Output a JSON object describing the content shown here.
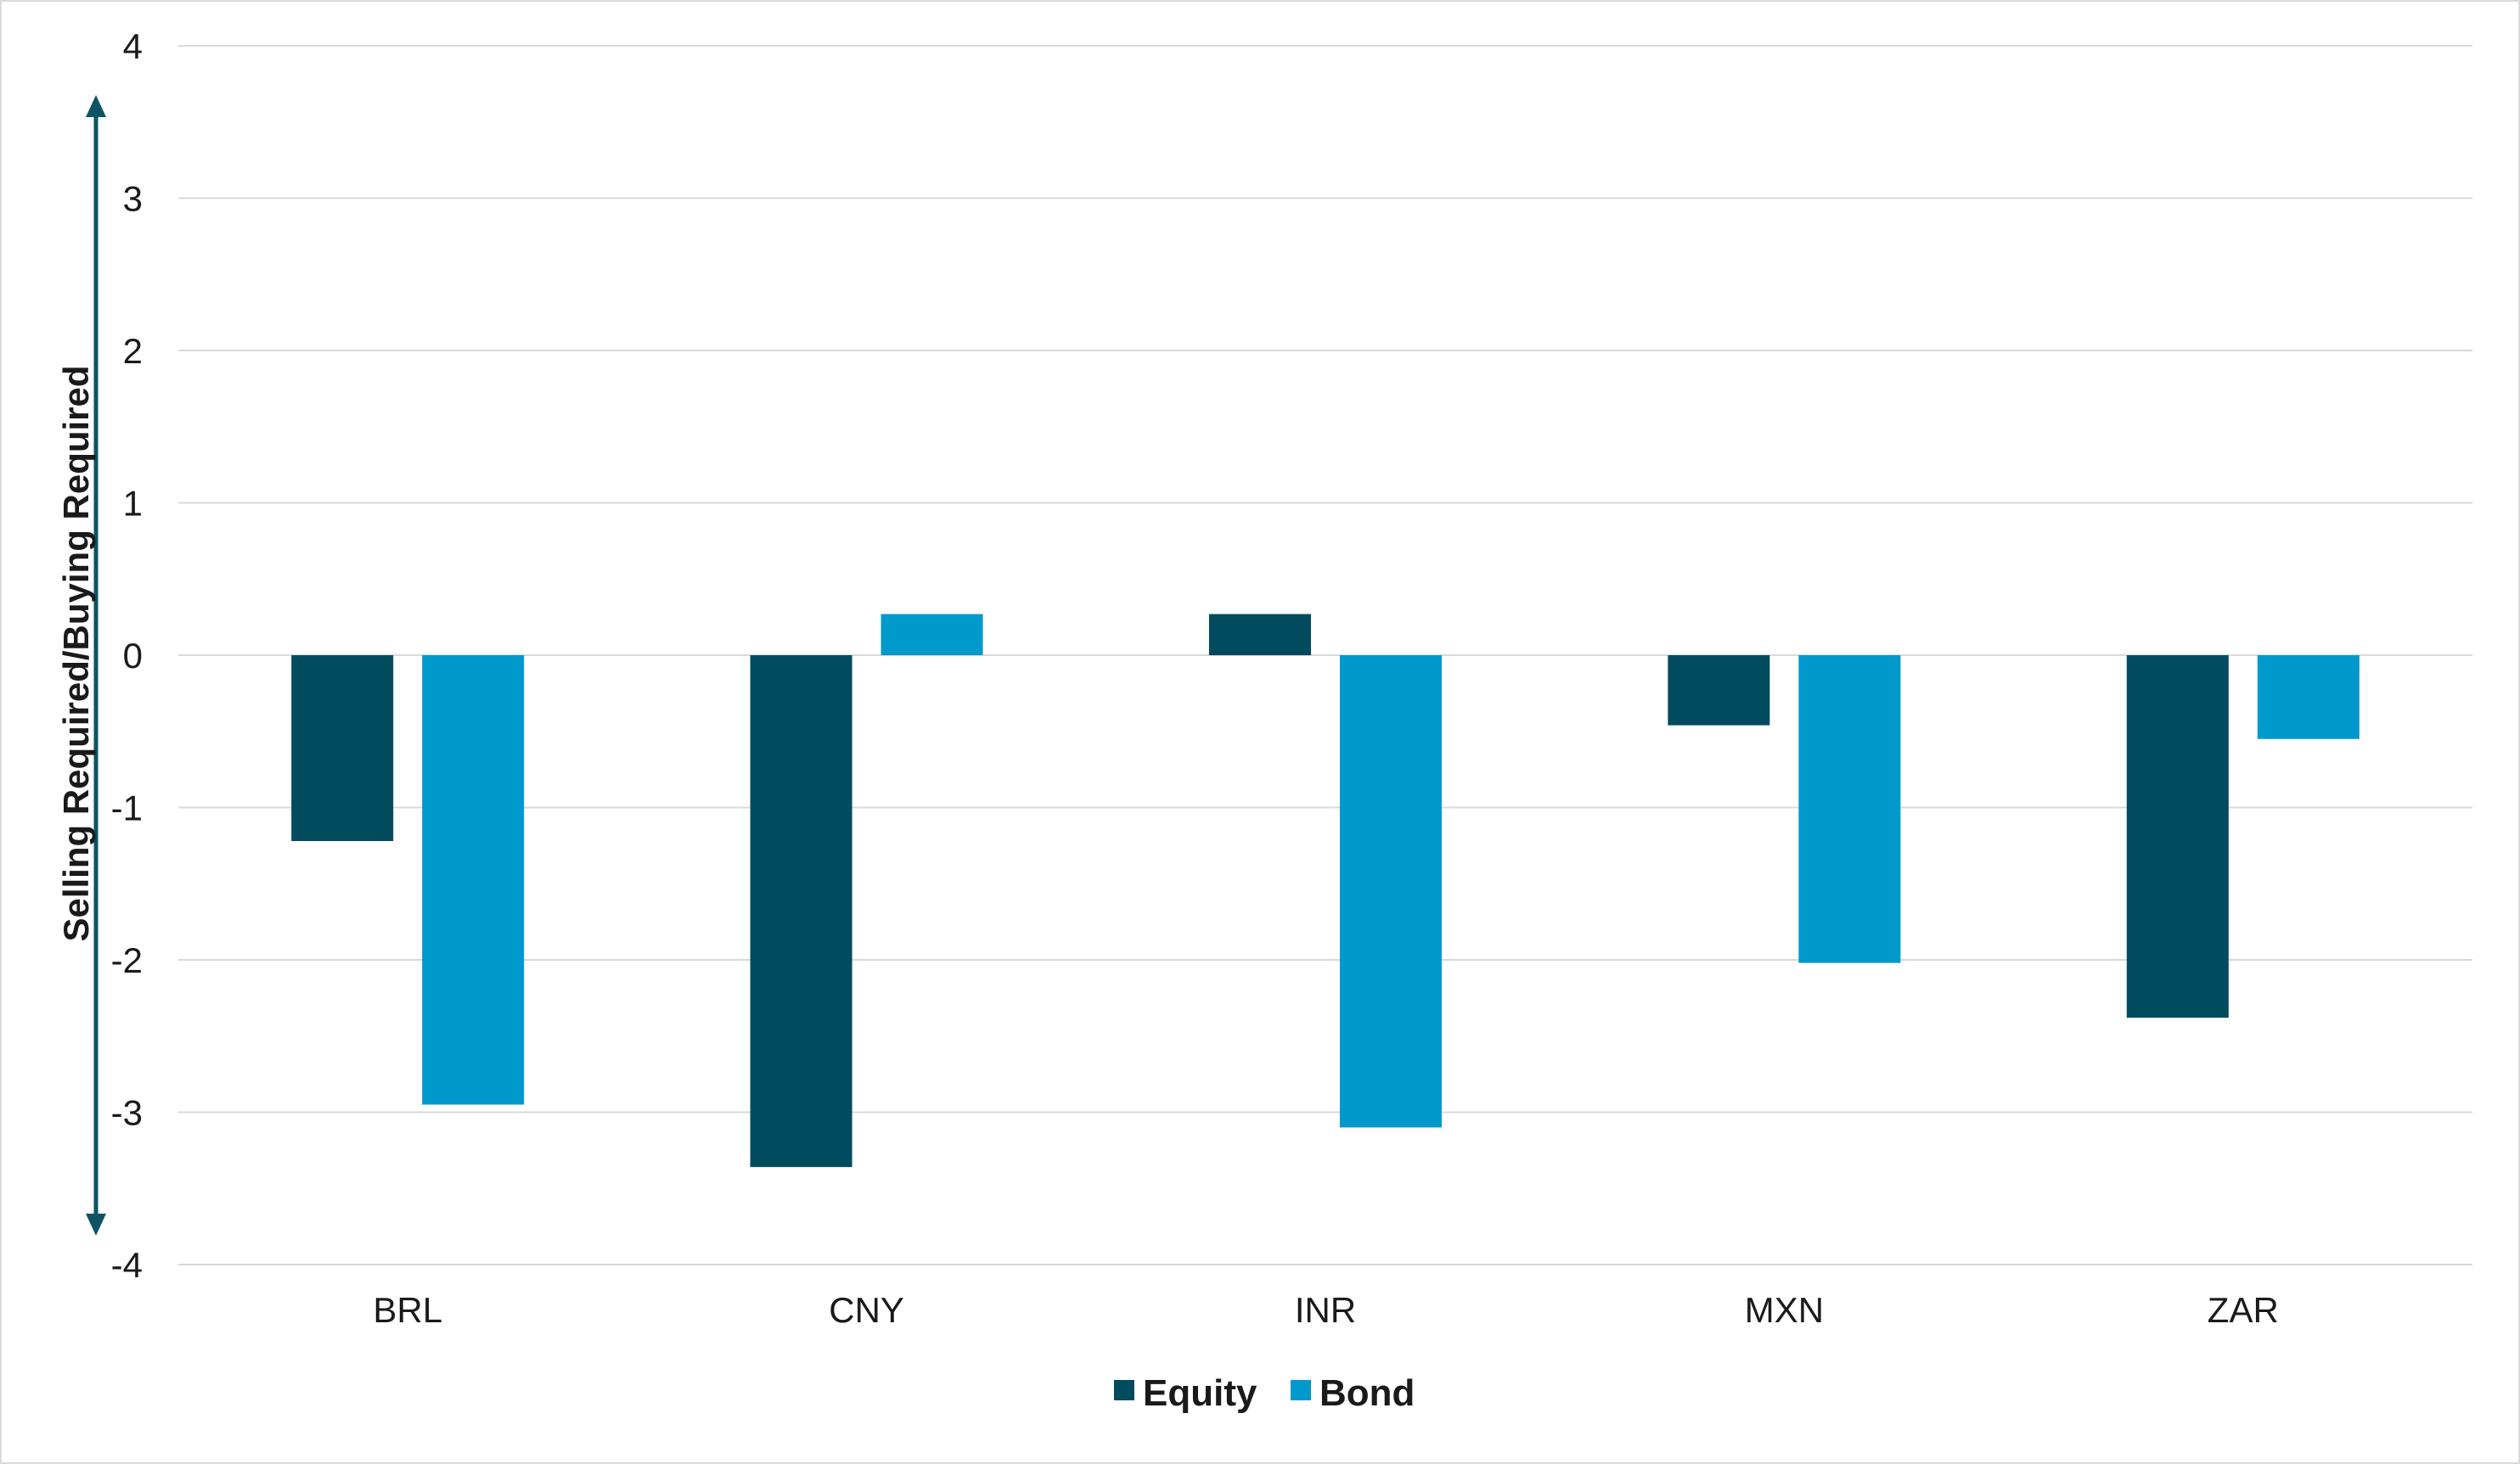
{
  "chart_data": {
    "type": "bar",
    "title": "",
    "xlabel": "",
    "ylabel": "Selling Required/Buying Required",
    "ylim": [
      -4,
      4
    ],
    "yticks": [
      4,
      3,
      2,
      1,
      0,
      -1,
      -2,
      -3,
      -4
    ],
    "categories": [
      "BRL",
      "CNY",
      "INR",
      "MXN",
      "ZAR"
    ],
    "series": [
      {
        "name": "Equity",
        "color": "#004b5e",
        "values": [
          -1.22,
          -3.36,
          0.27,
          -0.46,
          -2.38
        ]
      },
      {
        "name": "Bond",
        "color": "#0099cc",
        "values": [
          -2.95,
          0.27,
          -3.1,
          -2.02,
          -0.55
        ]
      }
    ],
    "grid": true,
    "legend": "bottom-center",
    "arrow_color": "#0e5366"
  }
}
